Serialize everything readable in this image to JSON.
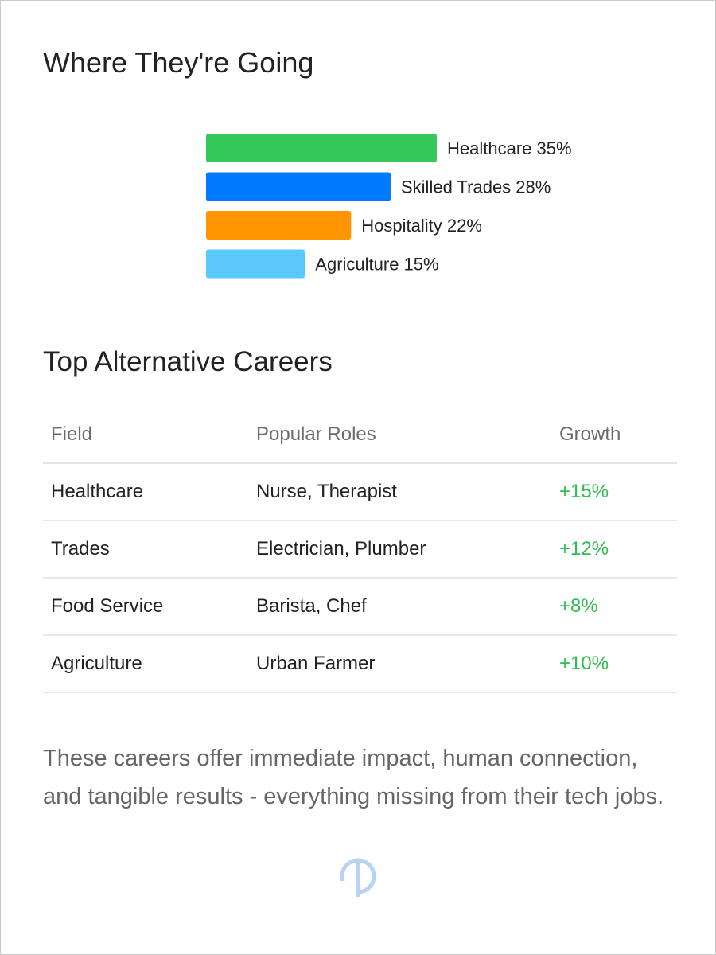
{
  "section1": {
    "title": "Where They're Going"
  },
  "chart_data": {
    "type": "bar",
    "orientation": "horizontal",
    "categories": [
      "Healthcare",
      "Skilled Trades",
      "Hospitality",
      "Agriculture"
    ],
    "values": [
      35,
      28,
      22,
      15
    ],
    "labels": [
      "Healthcare 35%",
      "Skilled Trades 28%",
      "Hospitality 22%",
      "Agriculture 15%"
    ],
    "colors": [
      "#34c759",
      "#007aff",
      "#ff9500",
      "#5ac8fa"
    ],
    "unit": "%",
    "grid": false,
    "legend": "none"
  },
  "section2": {
    "title": "Top Alternative Careers",
    "columns": [
      "Field",
      "Popular Roles",
      "Growth"
    ],
    "rows": [
      {
        "field": "Healthcare",
        "roles": "Nurse, Therapist",
        "growth": "+15%"
      },
      {
        "field": "Trades",
        "roles": "Electrician, Plumber",
        "growth": "+12%"
      },
      {
        "field": "Food Service",
        "roles": "Barista, Chef",
        "growth": "+8%"
      },
      {
        "field": "Agriculture",
        "roles": "Urban Farmer",
        "growth": "+10%"
      }
    ],
    "growth_color": "#2dbe4e"
  },
  "footer": {
    "text": "These careers offer immediate impact, human connection, and tangible results - everything missing from their tech jobs."
  },
  "logo": {
    "icon": "watermark-logo-icon",
    "color": "#b8d4f2"
  }
}
